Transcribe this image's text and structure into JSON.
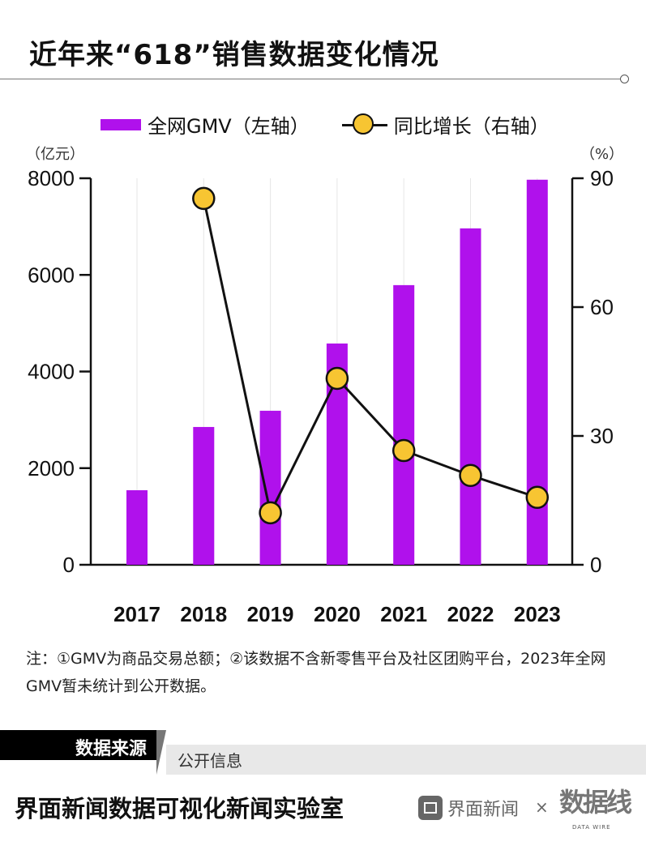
{
  "title": "近年来“618”销售数据变化情况",
  "legend": {
    "bar_label": "全网GMV（左轴）",
    "line_label": "同比增长（右轴）"
  },
  "units": {
    "left": "（亿元）",
    "right": "（%）"
  },
  "colors": {
    "bar": "#b011ec",
    "marker": "#f7c532",
    "line": "#111111"
  },
  "chart_data": {
    "type": "bar+line",
    "categories": [
      "2017",
      "2018",
      "2019",
      "2020",
      "2021",
      "2022",
      "2023"
    ],
    "series": [
      {
        "name": "全网GMV（左轴）",
        "type": "bar",
        "axis": "left",
        "values": [
          1543,
          2852,
          3188,
          4580,
          5788,
          6963,
          7970
        ]
      },
      {
        "name": "同比增长（右轴）",
        "type": "line",
        "axis": "right",
        "values": [
          null,
          85.3,
          12.1,
          43.4,
          26.6,
          20.8,
          15.7
        ]
      }
    ],
    "left_axis": {
      "label": "（亿元）",
      "ylim": [
        0,
        8000
      ],
      "ticks": [
        "0",
        "2000",
        "4000",
        "6000",
        "8000"
      ]
    },
    "right_axis": {
      "label": "（%）",
      "ylim": [
        0,
        90
      ],
      "ticks": [
        "0",
        "30",
        "60",
        "90"
      ]
    },
    "grid": "vertical light",
    "legend_position": "top"
  },
  "note": "注：①GMV为商品交易总额；②该数据不含新零售平台及社区团购平台，2023年全网GMV暂未统计到公开数据。",
  "source": {
    "label": "数据来源",
    "value": "公开信息"
  },
  "footer": {
    "title": "界面新闻数据可视化新闻实验室",
    "brand1": "界面新闻",
    "times": "×",
    "brand2": "数据线",
    "brand2_sub": "DATA WIRE"
  }
}
